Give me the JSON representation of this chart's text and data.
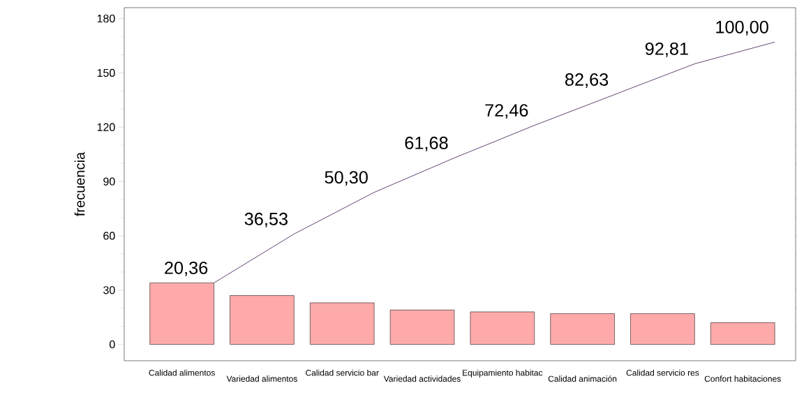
{
  "chart_data": {
    "type": "bar",
    "ylabel": "frecuencia",
    "categories": [
      "Calidad alimentos",
      "Variedad alimentos",
      "Calidad servicio bar",
      "Variedad actividades",
      "Equipamiento habitac",
      "Calidad animación",
      "Calidad servicio res",
      "Confort habitaciones"
    ],
    "series": [
      {
        "color": "#ffaaaa",
        "values": [
          34,
          27,
          23,
          19,
          18,
          17,
          17,
          12
        ]
      },
      {
        "type": "line",
        "color": "#3c1450",
        "values": [
          34,
          61,
          84,
          103,
          121,
          138,
          155,
          167
        ]
      }
    ],
    "annotations": [
      "20,36",
      "36,53",
      "50,30",
      "61,68",
      "72,46",
      "82,63",
      "92,81",
      "100,00"
    ],
    "ylim": [
      -9,
      186
    ],
    "yticks": [
      0,
      30,
      60,
      90,
      120,
      150,
      180
    ]
  }
}
